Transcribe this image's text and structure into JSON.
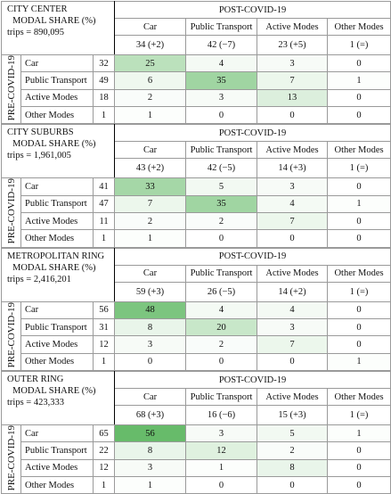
{
  "blocks": [
    {
      "title": "CITY CENTER",
      "subtitle": "MODAL SHARE (%)",
      "trips": "trips = 890,095",
      "post_label": "POST-COVID-19",
      "pre_label": "PRE-COVID-19",
      "columns": [
        "Car",
        "Public Transport",
        "Active Modes",
        "Other Modes"
      ],
      "post_totals": [
        "34 (+2)",
        "42 (−7)",
        "23 (+5)",
        "1 (=)"
      ],
      "rows": [
        {
          "mode": "Car",
          "pre": 32,
          "cells": [
            25,
            4,
            3,
            0
          ]
        },
        {
          "mode": "Public Transport",
          "pre": 49,
          "cells": [
            6,
            35,
            7,
            1
          ]
        },
        {
          "mode": "Active Modes",
          "pre": 18,
          "cells": [
            2,
            3,
            13,
            0
          ]
        },
        {
          "mode": "Other Modes",
          "pre": 1,
          "cells": [
            1,
            0,
            0,
            0
          ]
        }
      ]
    },
    {
      "title": "CITY SUBURBS",
      "subtitle": "MODAL SHARE (%)",
      "trips": "trips = 1,961,005",
      "post_label": "POST-COVID-19",
      "pre_label": "PRE-COVID-19",
      "columns": [
        "Car",
        "Public Transport",
        "Active Modes",
        "Other Modes"
      ],
      "post_totals": [
        "43 (+2)",
        "42 (−5)",
        "14 (+3)",
        "1 (=)"
      ],
      "rows": [
        {
          "mode": "Car",
          "pre": 41,
          "cells": [
            33,
            5,
            3,
            0
          ]
        },
        {
          "mode": "Public Transport",
          "pre": 47,
          "cells": [
            7,
            35,
            4,
            1
          ]
        },
        {
          "mode": "Active Modes",
          "pre": 11,
          "cells": [
            2,
            2,
            7,
            0
          ]
        },
        {
          "mode": "Other Modes",
          "pre": 1,
          "cells": [
            1,
            0,
            0,
            0
          ]
        }
      ]
    },
    {
      "title": "METROPOLITAN RING",
      "subtitle": "MODAL SHARE (%)",
      "trips": "trips = 2,416,201",
      "post_label": "POST-COVID-19",
      "pre_label": "PRE-COVID-19",
      "columns": [
        "Car",
        "Public Transport",
        "Active Modes",
        "Other Modes"
      ],
      "post_totals": [
        "59 (+3)",
        "26 (−5)",
        "14 (+2)",
        "1 (=)"
      ],
      "rows": [
        {
          "mode": "Car",
          "pre": 56,
          "cells": [
            48,
            4,
            4,
            0
          ]
        },
        {
          "mode": "Public Transport",
          "pre": 31,
          "cells": [
            8,
            20,
            3,
            0
          ]
        },
        {
          "mode": "Active Modes",
          "pre": 12,
          "cells": [
            3,
            2,
            7,
            0
          ]
        },
        {
          "mode": "Other Modes",
          "pre": 1,
          "cells": [
            0,
            0,
            0,
            1
          ]
        }
      ]
    },
    {
      "title": "OUTER RING",
      "subtitle": "MODAL SHARE (%)",
      "trips": "trips = 423,333",
      "post_label": "POST-COVID-19",
      "pre_label": "PRE-COVID-19",
      "columns": [
        "Car",
        "Public Transport",
        "Active Modes",
        "Other Modes"
      ],
      "post_totals": [
        "68 (+3)",
        "16 (−6)",
        "15 (+3)",
        "1 (=)"
      ],
      "rows": [
        {
          "mode": "Car",
          "pre": 65,
          "cells": [
            56,
            3,
            5,
            1
          ]
        },
        {
          "mode": "Public Transport",
          "pre": 22,
          "cells": [
            8,
            12,
            2,
            0
          ]
        },
        {
          "mode": "Active Modes",
          "pre": 12,
          "cells": [
            3,
            1,
            8,
            0
          ]
        },
        {
          "mode": "Other Modes",
          "pre": 1,
          "cells": [
            1,
            0,
            0,
            0
          ]
        }
      ]
    }
  ]
}
